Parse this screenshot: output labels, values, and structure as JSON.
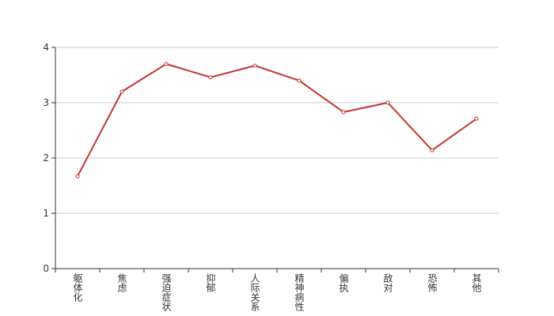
{
  "chart_data": {
    "type": "line",
    "categories": [
      "躯体化",
      "焦虑",
      "强迫症状",
      "抑郁",
      "人际关系",
      "精神病性",
      "偏执",
      "敌对",
      "恐怖",
      "其他"
    ],
    "series": [
      {
        "color": "#c23531",
        "values": [
          1.67,
          3.2,
          3.7,
          3.46,
          3.67,
          3.4,
          2.83,
          3.0,
          2.14,
          2.71
        ]
      }
    ],
    "ylim": [
      0,
      4
    ],
    "yticks": [
      0,
      1,
      2,
      3,
      4
    ],
    "grid": true
  }
}
